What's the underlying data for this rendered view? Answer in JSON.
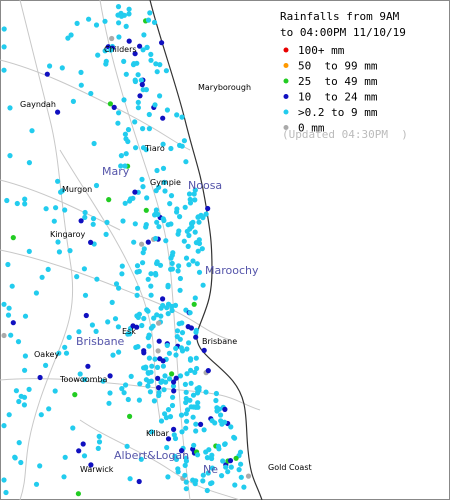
{
  "legend": {
    "title": "Rainfalls from 9AM",
    "subtitle": "to 04:00PM 11/10/19",
    "items": [
      {
        "label": "100+ mm",
        "color": "#e80000"
      },
      {
        "label": "50  to 99 mm",
        "color": "#ff9900"
      },
      {
        "label": "25  to 49 mm",
        "color": "#22cc22"
      },
      {
        "label": "10  to 24 mm",
        "color": "#1010c0"
      },
      {
        "label": ">0.2 to 9 mm",
        "color": "#22ccee"
      },
      {
        "label": "0 mm",
        "color": "#aaaaaa"
      }
    ],
    "updated": "(Updated 04:30PM  )"
  },
  "regions": [
    "Mary",
    "Noosa",
    "Maroochy",
    "Brisbane",
    "Albert&Logan",
    "Ne"
  ],
  "towns": [
    "Childers",
    "Maryborough",
    "Gayndah",
    "Tiaro",
    "Gympie",
    "Murgon",
    "Kingaroy",
    "Esk",
    "Brisbane",
    "Oakey",
    "Toowoomba",
    "Kilbar",
    "Warwick",
    "Gold Coast"
  ]
}
